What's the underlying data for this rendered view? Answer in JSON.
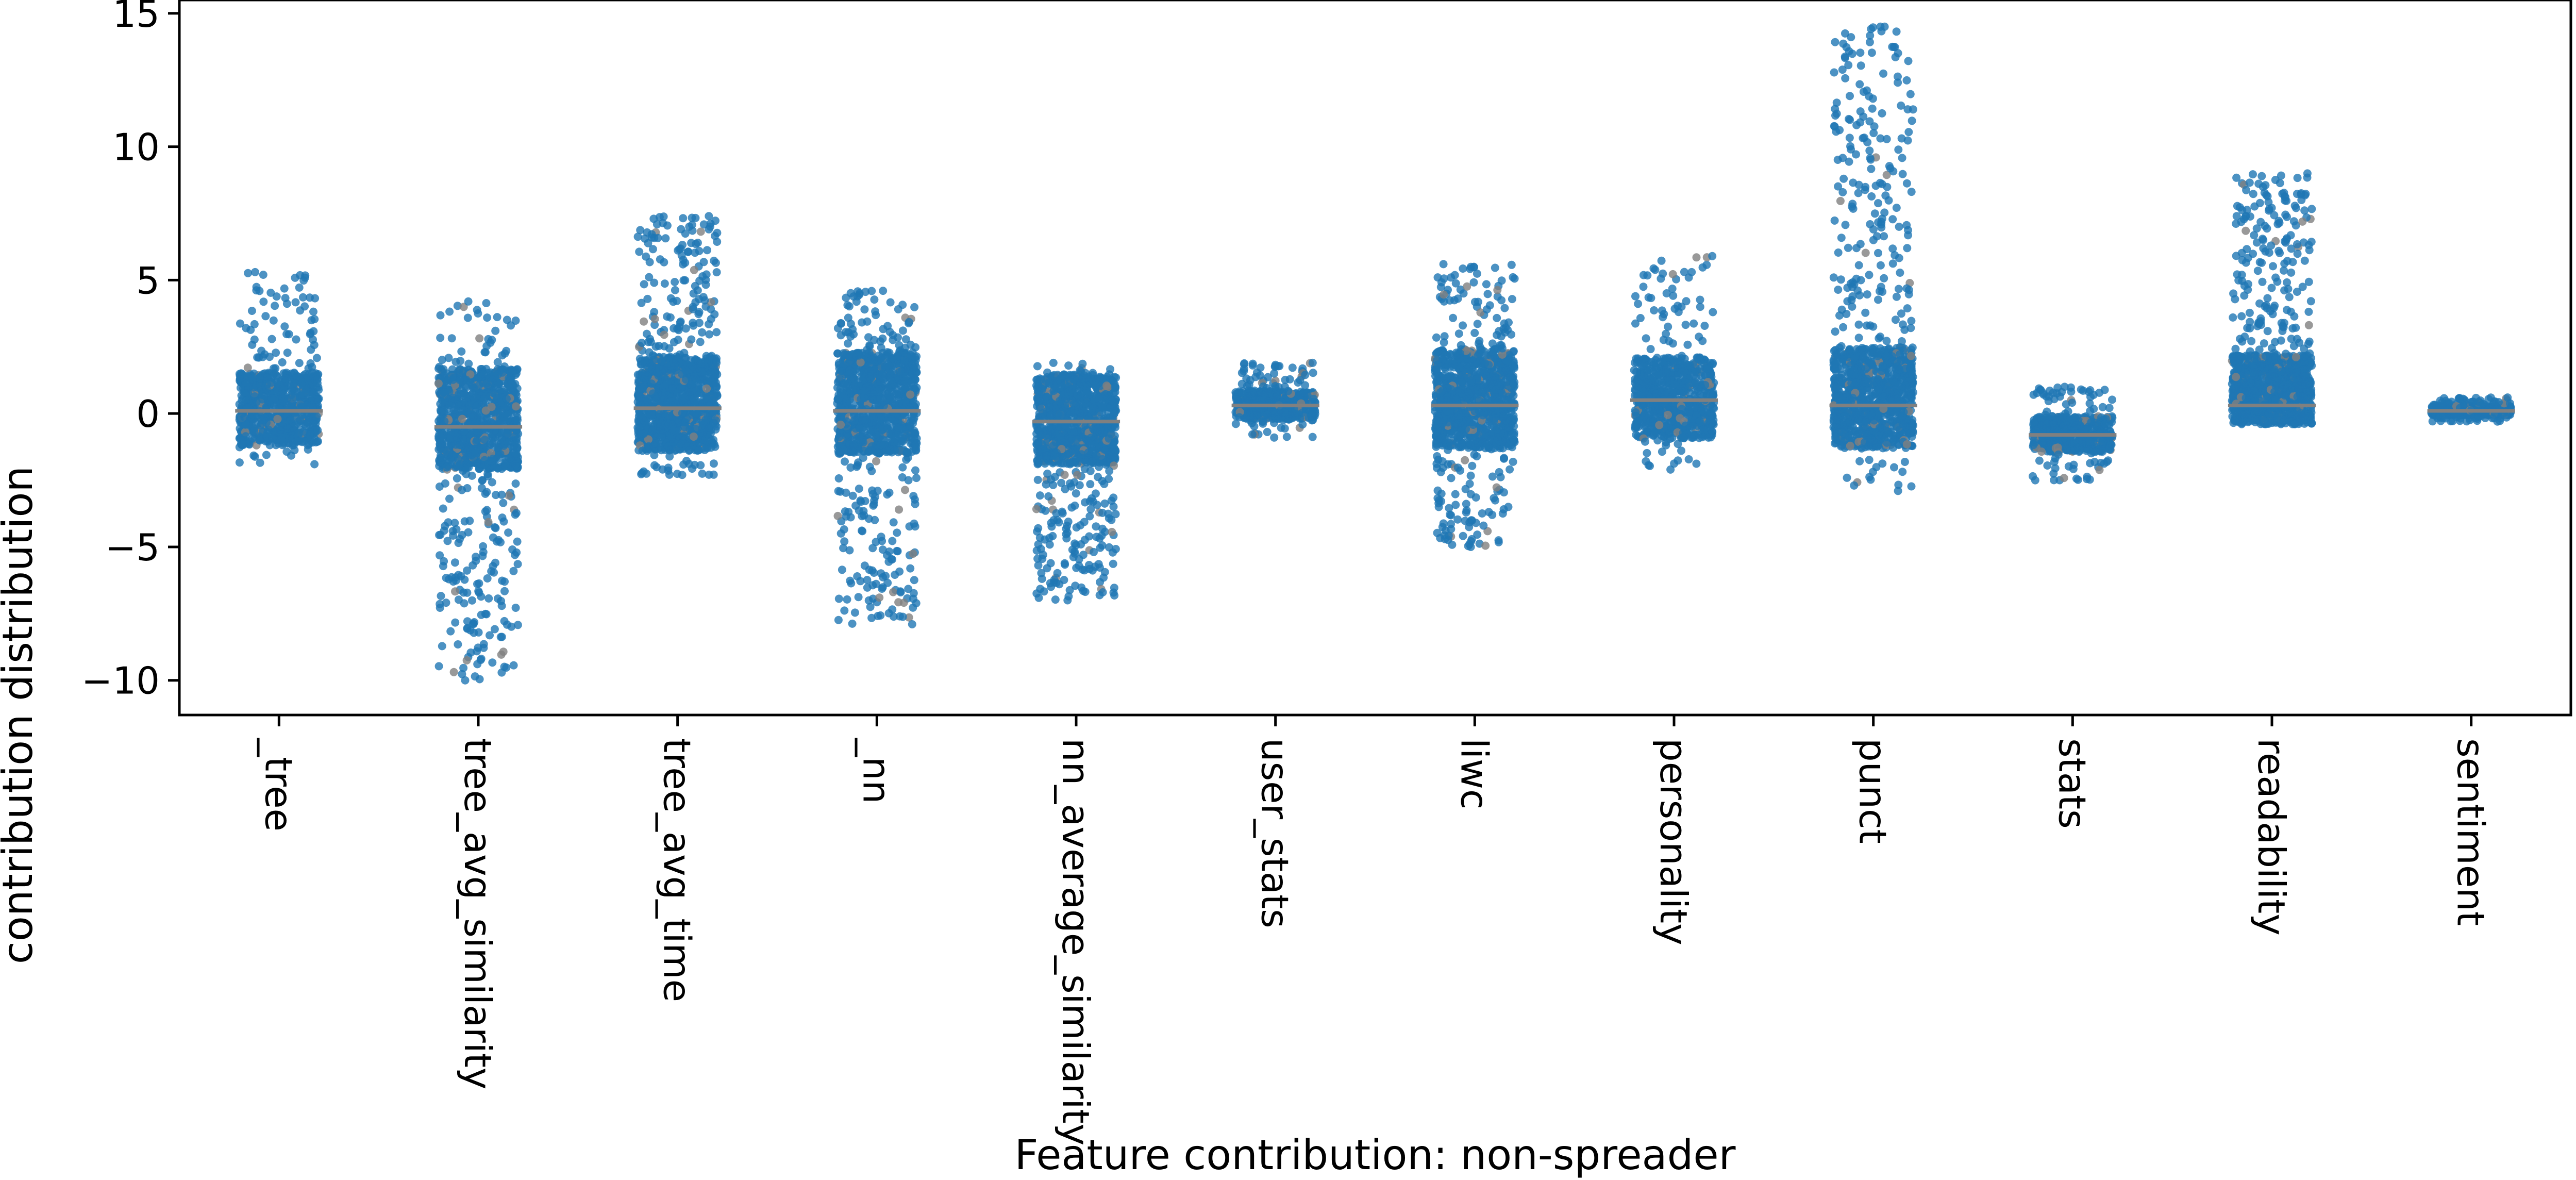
{
  "chart_data": {
    "type": "scatter",
    "subtype": "stripplot",
    "xlabel": "Feature contribution: non-spreader",
    "ylabel": "contribution distribution",
    "ylim": [
      -11.3,
      15.5
    ],
    "yticks": [
      -10,
      -5,
      0,
      5,
      10,
      15
    ],
    "ytick_labels": [
      "−10",
      "−5",
      "0",
      "5",
      "10",
      "15"
    ],
    "grid": false,
    "legend": "none",
    "point_color": "#1f77b4",
    "marker_color": "#808080",
    "categories": [
      "_tree",
      "tree_avg_similarity",
      "tree_avg_time",
      "_nn",
      "nn_average_similarity",
      "user_stats",
      "liwc",
      "personality",
      "punct",
      "stats",
      "readability",
      "sentiment"
    ],
    "distributions": [
      {
        "name": "_tree",
        "min": -1.9,
        "max": 5.3,
        "median": 0.1
      },
      {
        "name": "tree_avg_similarity",
        "min": -10.0,
        "max": 4.2,
        "median": -0.5
      },
      {
        "name": "tree_avg_time",
        "min": -2.3,
        "max": 7.4,
        "median": 0.2
      },
      {
        "name": "_nn",
        "min": -7.9,
        "max": 4.6,
        "median": 0.1
      },
      {
        "name": "nn_average_similarity",
        "min": -7.0,
        "max": 1.9,
        "median": -0.3
      },
      {
        "name": "user_stats",
        "min": -0.9,
        "max": 1.9,
        "median": 0.3
      },
      {
        "name": "liwc",
        "min": -5.0,
        "max": 5.6,
        "median": 0.3
      },
      {
        "name": "personality",
        "min": -2.1,
        "max": 5.9,
        "median": 0.5
      },
      {
        "name": "punct",
        "min": -2.9,
        "max": 14.5,
        "median": 0.3
      },
      {
        "name": "stats",
        "min": -2.5,
        "max": 1.0,
        "median": -0.8
      },
      {
        "name": "readability",
        "min": -0.4,
        "max": 9.0,
        "median": 0.3
      },
      {
        "name": "sentiment",
        "min": -0.3,
        "max": 0.6,
        "median": 0.1
      }
    ]
  }
}
